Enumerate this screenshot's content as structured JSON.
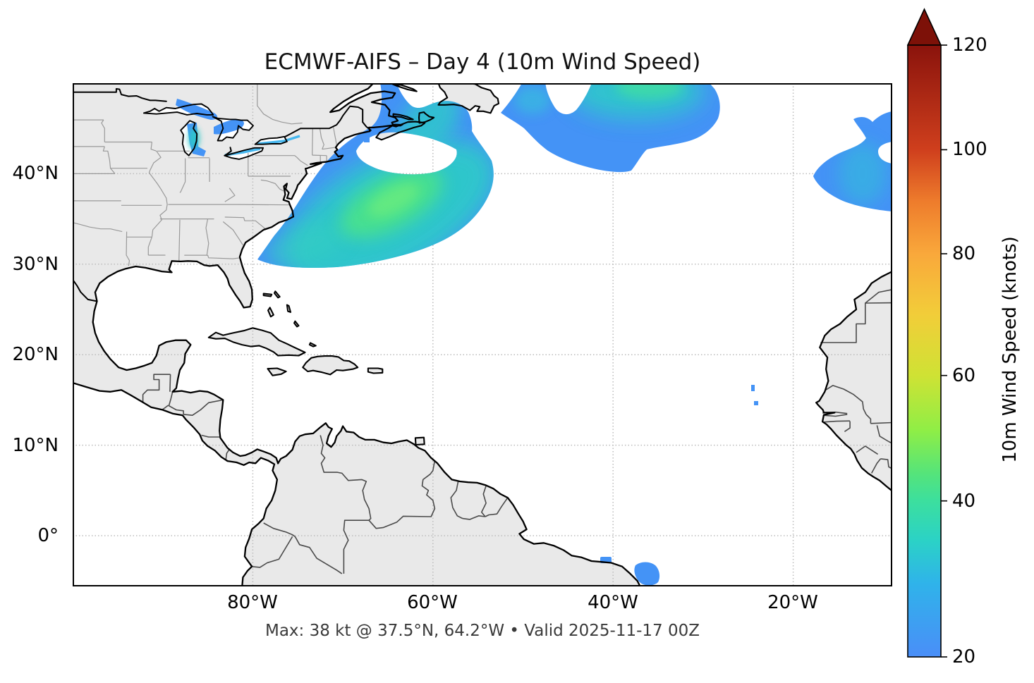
{
  "title": "ECMWF-AIFS – Day 4 (10m Wind Speed)",
  "caption": "Max: 38 kt @ 37.5°N, 64.2°W • Valid 2025-11-17 00Z",
  "axes": {
    "x_ticks": [
      "80°W",
      "60°W",
      "40°W",
      "20°W"
    ],
    "y_ticks": [
      "40°N",
      "30°N",
      "20°N",
      "10°N",
      "0°"
    ]
  },
  "colorbar": {
    "label": "10m Wind Speed (knots)",
    "ticks": [
      "20",
      "40",
      "60",
      "80",
      "100",
      "120"
    ],
    "tick_fractions_from_top": [
      1.0,
      0.745,
      0.54,
      0.341,
      0.171,
      0.0
    ],
    "extend": "max",
    "arrow_color": "#7d1108",
    "gradient_top_to_bottom": [
      [
        0.0,
        "#8a130c"
      ],
      [
        0.171,
        "#cf3f1d"
      ],
      [
        0.256,
        "#ee7c2c"
      ],
      [
        0.341,
        "#f9a83b"
      ],
      [
        0.44,
        "#f2cd39"
      ],
      [
        0.54,
        "#cfe234"
      ],
      [
        0.63,
        "#8fee46"
      ],
      [
        0.7,
        "#55e47a"
      ],
      [
        0.745,
        "#3cdf9e"
      ],
      [
        0.81,
        "#2bd2c6"
      ],
      [
        0.88,
        "#2fb3ea"
      ],
      [
        1.0,
        "#4a8ef8"
      ]
    ]
  },
  "map_colors": {
    "land": "#e9e9e9",
    "ocean": "#ffffff",
    "coastline": "#000000",
    "state_border": "#999999",
    "country_border": "#4a4a4a",
    "gridline": "#bcbcbc",
    "wind_blue": "#4493f6",
    "wind_teal": "#2fc9c9",
    "wind_green": "#49e18d",
    "wind_bright": "#66ea80",
    "wind_cyan_line": "#46b7ef"
  },
  "chart_data": {
    "type": "heatmap",
    "subtype": "geographic wind speed map",
    "model": "ECMWF-AIFS",
    "lead_time": "Day 4",
    "variable": "10m Wind Speed",
    "units": "knots",
    "valid_time": "2025-11-17 00Z",
    "max_value_kt": 38,
    "max_location": {
      "lat": "37.5°N",
      "lon": "64.2°W"
    },
    "map_extent": {
      "lon_west": -100,
      "lon_east": -9,
      "lat_south": -5.6,
      "lat_north": 50
    },
    "colorbar_range_kt": [
      20,
      120
    ],
    "colorbar_ticks_kt": [
      20,
      40,
      60,
      80,
      100,
      120
    ],
    "grid_lons_deg_w": [
      80,
      60,
      40,
      20
    ],
    "grid_lats_deg_n": [
      40,
      30,
      20,
      10,
      0
    ],
    "shaded_regions": [
      {
        "name": "western-atlantic-storm",
        "approx": "29–44°N, 75–55°W",
        "peak_kt": 38,
        "note": "large comma-shaped swath off US East Coast, green core near 37.5N 64.2W"
      },
      {
        "name": "gulf-of-st-lawrence-arm",
        "approx": "44–50°N, 66–55°W",
        "peak_kt": 33
      },
      {
        "name": "central-north-atlantic",
        "approx": "40–50°N, 50–28°W",
        "peak_kt": 34
      },
      {
        "name": "northeast-atlantic-edge",
        "approx": "36–46°N, 18–9°W",
        "peak_kt": 28
      },
      {
        "name": "great-lakes",
        "approx": "42–48°N, 92–76°W",
        "peak_kt": 30
      },
      {
        "name": "cape-verde-specks",
        "approx": "15–17°N, 25°W",
        "peak_kt": 22
      },
      {
        "name": "brazil-coast",
        "approx": "2–5°S, 41–35°W",
        "peak_kt": 24
      }
    ]
  }
}
